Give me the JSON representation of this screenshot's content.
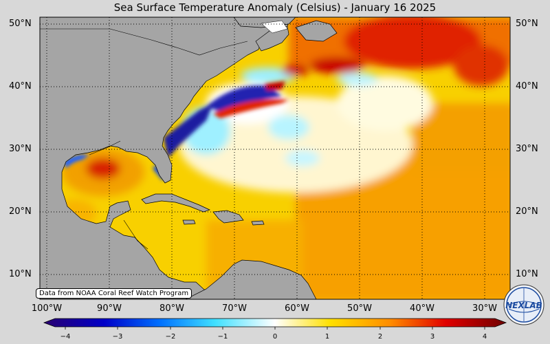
{
  "title": "Sea Surface Temperature Anomaly (Celsius) - January 16 2025",
  "credit": "Data from NOAA Coral Reef Watch Program",
  "logo_text": "NEXLAB",
  "lat_labels": [
    "10°N",
    "20°N",
    "30°N",
    "40°N",
    "50°N"
  ],
  "lon_labels": [
    "100°W",
    "90°W",
    "80°W",
    "70°W",
    "60°W",
    "50°W",
    "40°W",
    "30°W"
  ],
  "colorbar": {
    "min": -4,
    "max": 4,
    "ticks": [
      "−4",
      "−3",
      "−2",
      "−1",
      "0",
      "1",
      "2",
      "3",
      "4"
    ]
  },
  "colors": {
    "land": "#a5a5a5",
    "ocean_background": "#f7c800",
    "cold": "#2222aa",
    "warm": "#c80000"
  }
}
